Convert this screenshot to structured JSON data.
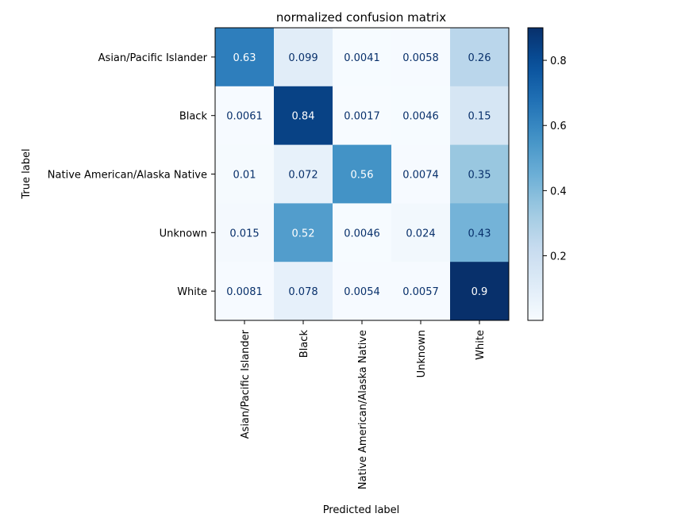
{
  "chart_data": {
    "type": "heatmap",
    "title": "normalized confusion matrix",
    "xlabel": "Predicted label",
    "ylabel": "True label",
    "categories": [
      "Asian/Pacific Islander",
      "Black",
      "Native American/Alaska Native",
      "Unknown",
      "White"
    ],
    "values": [
      [
        0.63,
        0.099,
        0.0041,
        0.0058,
        0.26
      ],
      [
        0.0061,
        0.84,
        0.0017,
        0.0046,
        0.15
      ],
      [
        0.01,
        0.072,
        0.56,
        0.0074,
        0.35
      ],
      [
        0.015,
        0.52,
        0.0046,
        0.024,
        0.43
      ],
      [
        0.0081,
        0.078,
        0.0054,
        0.0057,
        0.9
      ]
    ],
    "cell_labels": [
      [
        "0.63",
        "0.099",
        "0.0041",
        "0.0058",
        "0.26"
      ],
      [
        "0.0061",
        "0.84",
        "0.0017",
        "0.0046",
        "0.15"
      ],
      [
        "0.01",
        "0.072",
        "0.56",
        "0.0074",
        "0.35"
      ],
      [
        "0.015",
        "0.52",
        "0.0046",
        "0.024",
        "0.43"
      ],
      [
        "0.0081",
        "0.078",
        "0.0054",
        "0.0057",
        "0.9"
      ]
    ],
    "colormap": "Blues",
    "colorbar": {
      "range": [
        0.0017,
        0.9
      ],
      "ticks": [
        0.2,
        0.4,
        0.6,
        0.8
      ],
      "tick_labels": [
        "0.2",
        "0.4",
        "0.6",
        "0.8"
      ]
    },
    "grid": false
  }
}
